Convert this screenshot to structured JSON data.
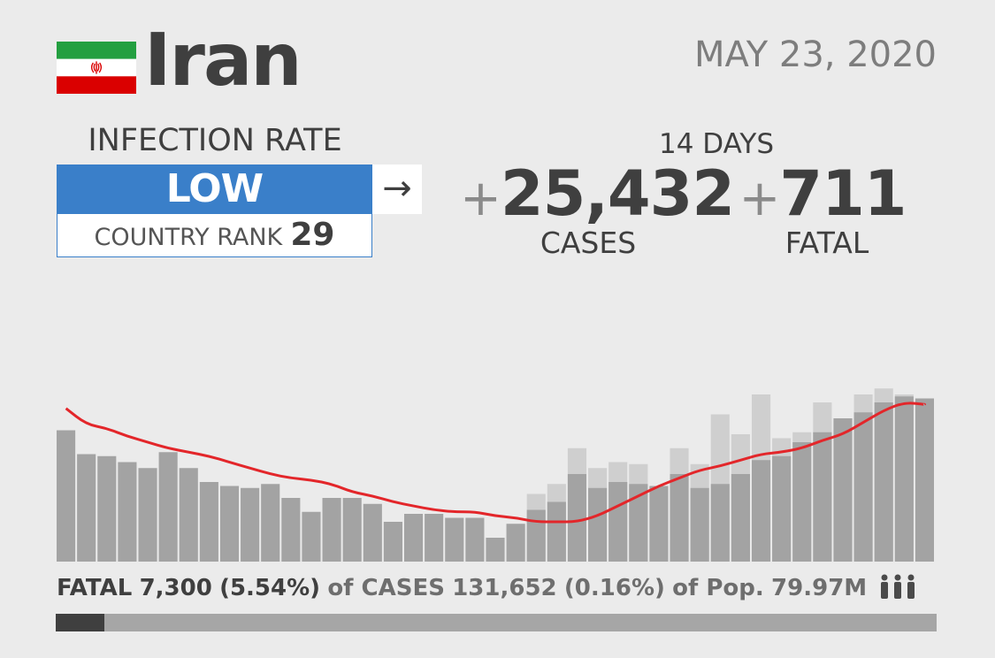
{
  "header": {
    "country": "Iran",
    "date": "MAY 23, 2020",
    "flag_icon": "iran-flag-icon",
    "flag_colors": {
      "green": "#239f40",
      "white": "#ffffff",
      "red": "#da0000"
    }
  },
  "infection": {
    "label": "INFECTION RATE",
    "level": "LOW",
    "level_color": "#3a7fc9",
    "trend_icon": "→",
    "rank_label": "COUNTRY RANK",
    "rank_value": "29"
  },
  "stats": {
    "period": "14 DAYS",
    "cases_prefix": "+",
    "cases_value": "25,432",
    "cases_label": "CASES",
    "fatal_prefix": "+",
    "fatal_value": "711",
    "fatal_label": "FATAL"
  },
  "footer": {
    "fatal_label": "FATAL",
    "fatal_value": "7,300",
    "fatal_pct": "(5.54%)",
    "of_cases": "of CASES",
    "cases_value": "131,652",
    "cases_pct": "(0.16%)",
    "of_pop": "of Pop.",
    "pop_value": "79.97M",
    "people_icon": "people-icon",
    "progress_fraction": 0.0554
  },
  "chart_data": {
    "type": "bar",
    "title": "",
    "xlabel": "",
    "ylabel": "",
    "ylim": [
      0,
      100
    ],
    "grid": false,
    "colors": {
      "bar_dark": "#a3a3a3",
      "bar_light": "#cfcfcf",
      "line": "#e3262a"
    },
    "series": [
      {
        "values": [
          66,
          54,
          53,
          50,
          47,
          55,
          47,
          40,
          38,
          37,
          39,
          32,
          25,
          32,
          32,
          29,
          20,
          24,
          24,
          22,
          22,
          12,
          19,
          26,
          30,
          44,
          37,
          40,
          39,
          38,
          44,
          37,
          39,
          44,
          51,
          53,
          60,
          65,
          72,
          75,
          80,
          83,
          82
        ]
      },
      {
        "values": [
          0,
          0,
          0,
          0,
          0,
          0,
          0,
          0,
          0,
          0,
          0,
          0,
          0,
          0,
          0,
          0,
          0,
          0,
          0,
          0,
          0,
          0,
          0,
          34,
          39,
          57,
          47,
          50,
          49,
          38,
          57,
          49,
          74,
          64,
          84,
          62,
          65,
          80,
          72,
          84,
          87,
          84,
          0
        ]
      },
      {
        "values": [
          77,
          69,
          67,
          63,
          60,
          57,
          55,
          53,
          50,
          47,
          44,
          42,
          41,
          39,
          35,
          33,
          30,
          28,
          26,
          25,
          25,
          23,
          22,
          20,
          20,
          20,
          23,
          28,
          33,
          38,
          42,
          46,
          48,
          51,
          54,
          55,
          57,
          61,
          64,
          70,
          76,
          80,
          79
        ]
      }
    ]
  }
}
